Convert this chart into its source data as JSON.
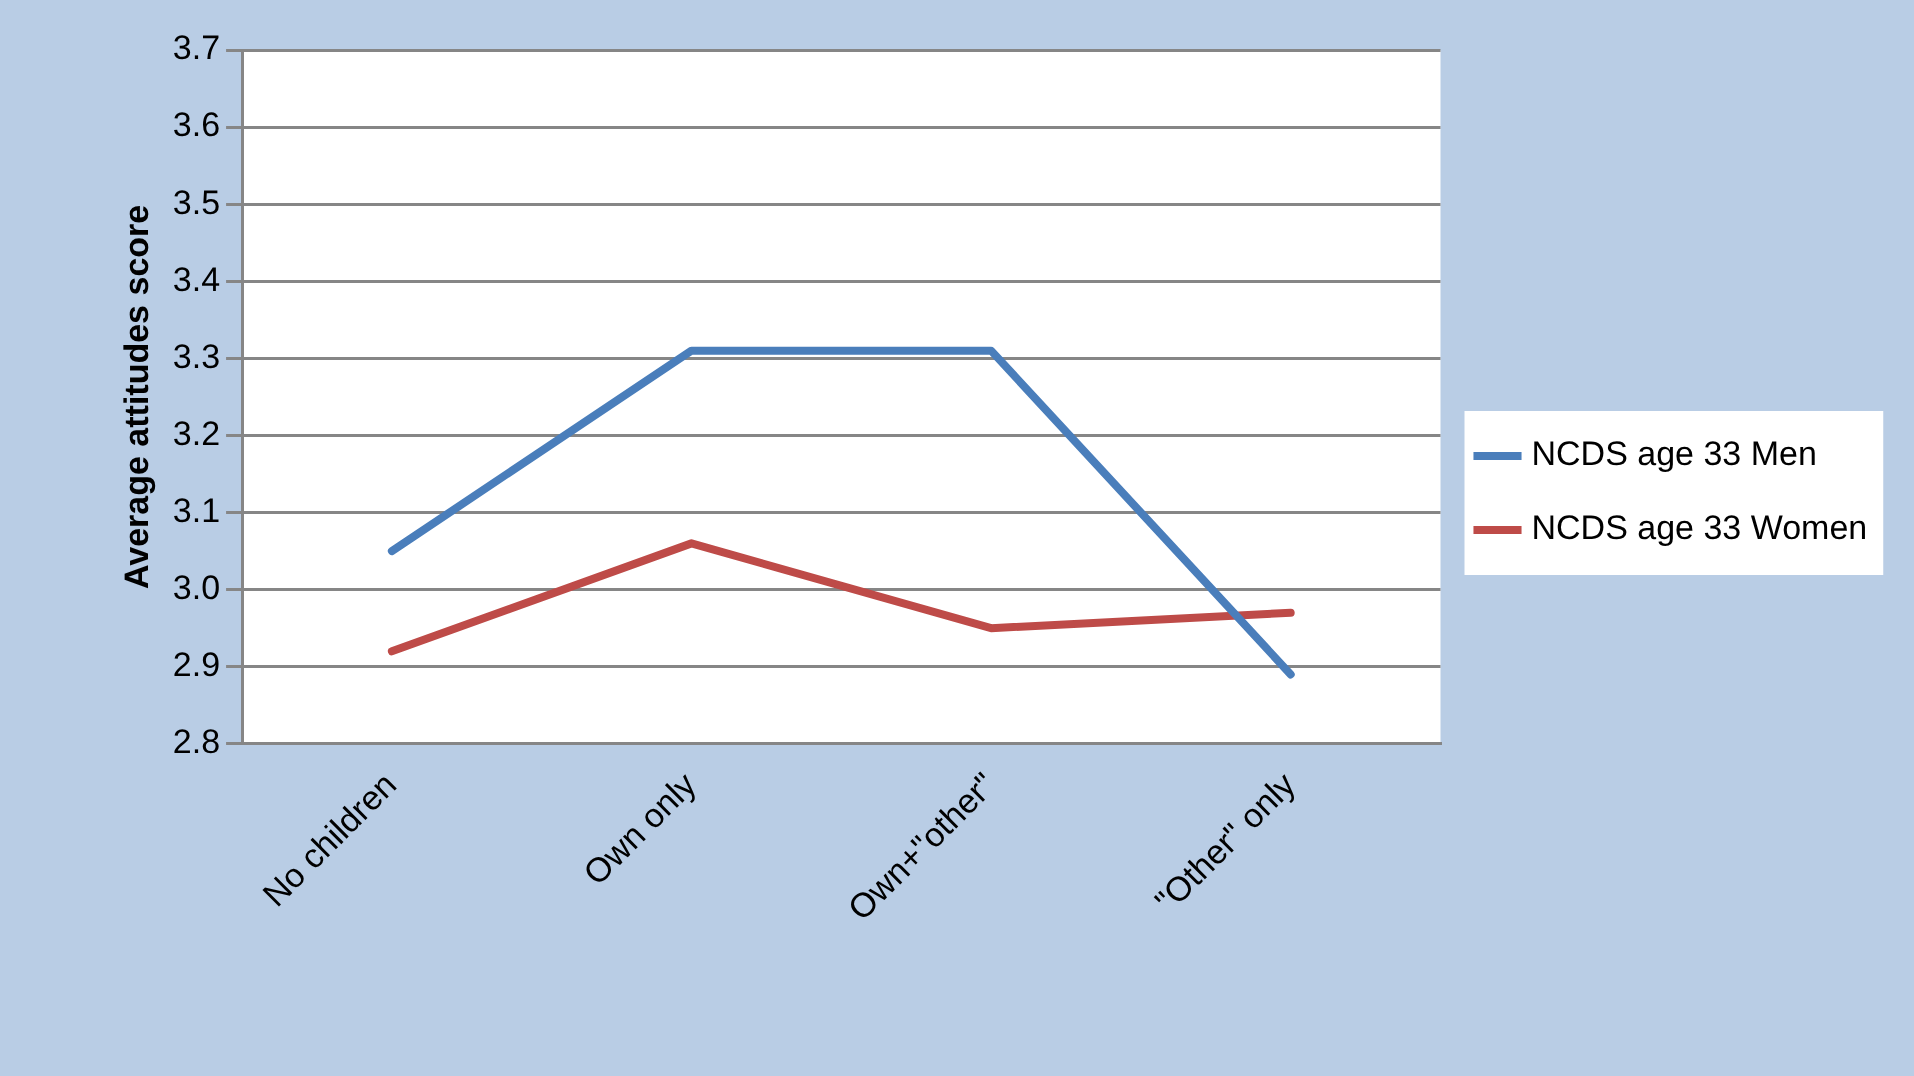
{
  "chart_data": {
    "type": "line",
    "ylabel": "Average attitudes score",
    "categories": [
      "No children",
      "Own only",
      "Own+\"other\"",
      "\"Other\" only"
    ],
    "series": [
      {
        "name": "NCDS age 33 Men",
        "color": "#4a7ebb",
        "values": [
          3.05,
          3.31,
          3.31,
          2.89
        ]
      },
      {
        "name": "NCDS age 33 Women",
        "color": "#be4b48",
        "values": [
          2.92,
          3.06,
          2.95,
          2.97
        ]
      }
    ],
    "ylim": [
      2.8,
      3.7
    ],
    "yticks": [
      {
        "value": 2.8,
        "label": "2.8"
      },
      {
        "value": 2.9,
        "label": "2.9"
      },
      {
        "value": 3.0,
        "label": "3.0"
      },
      {
        "value": 3.1,
        "label": "3.1"
      },
      {
        "value": 3.2,
        "label": "3.2"
      },
      {
        "value": 3.3,
        "label": "3.3"
      },
      {
        "value": 3.4,
        "label": "3.4"
      },
      {
        "value": 3.5,
        "label": "3.5"
      },
      {
        "value": 3.6,
        "label": "3.6"
      },
      {
        "value": 3.7,
        "label": "3.7"
      }
    ],
    "grid": "y",
    "legend": "right",
    "marker": "none",
    "line_style": "solid"
  }
}
